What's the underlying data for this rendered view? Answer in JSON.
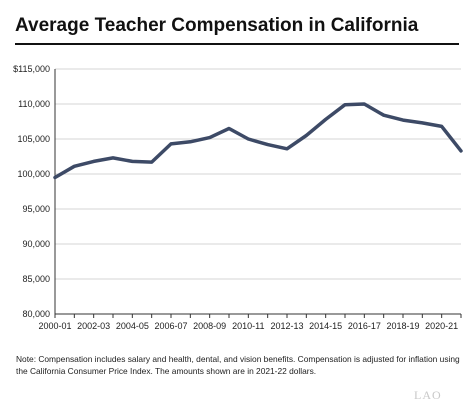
{
  "chart_data": {
    "type": "line",
    "title": "Average Teacher Compensation in California",
    "xlabel": "",
    "ylabel": "",
    "x": [
      "2000-01",
      "2001-02",
      "2002-03",
      "2003-04",
      "2004-05",
      "2005-06",
      "2006-07",
      "2007-08",
      "2008-09",
      "2009-10",
      "2010-11",
      "2011-12",
      "2012-13",
      "2013-14",
      "2014-15",
      "2015-16",
      "2016-17",
      "2017-18",
      "2018-19",
      "2019-20",
      "2020-21",
      "2021-22"
    ],
    "x_tick_labels": [
      "2000-01",
      "2002-03",
      "2004-05",
      "2006-07",
      "2008-09",
      "2010-11",
      "2012-13",
      "2014-15",
      "2016-17",
      "2018-19",
      "2020-21"
    ],
    "y_tick_labels": [
      "80,000",
      "85,000",
      "90,000",
      "95,000",
      "100,000",
      "105,000",
      "110,000",
      "$115,000"
    ],
    "ylim": [
      80000,
      115000
    ],
    "y_ticks": [
      80000,
      85000,
      90000,
      95000,
      100000,
      105000,
      110000,
      115000
    ],
    "grid": true,
    "color": "#3d4a66",
    "series": [
      {
        "values": [
          99500,
          101100,
          101800,
          102300,
          101800,
          101700,
          104300,
          104600,
          105200,
          106500,
          105000,
          104200,
          103600,
          105500,
          107800,
          109900,
          110000,
          108400,
          107700,
          107300,
          106800,
          103300
        ]
      }
    ]
  },
  "note": "Note: Compensation includes salary and health, dental, and vision benefits. Compensation is adjusted for inflation using the California Consumer Price Index. The amounts shown are in 2021-22 dollars.",
  "logo": "LAO"
}
